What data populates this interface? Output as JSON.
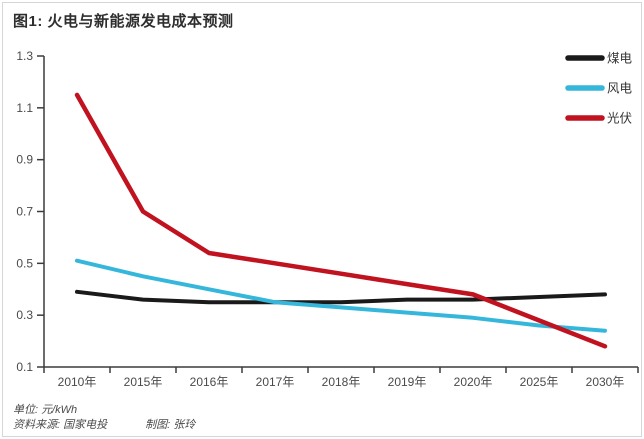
{
  "page": {
    "title": "图1: 火电与新能源发电成本预测",
    "footer": {
      "unit_label": "单位: 元/kWh",
      "source_label": "资料来源: 国家电投",
      "credit_label": "制图: 张玲"
    }
  },
  "chart_data": {
    "type": "line",
    "title": "图1: 火电与新能源发电成本预测",
    "xlabel": "",
    "ylabel": "",
    "unit": "元/kWh",
    "categories": [
      "2010年",
      "2015年",
      "2016年",
      "2017年",
      "2018年",
      "2019年",
      "2020年",
      "2025年",
      "2030年"
    ],
    "series": [
      {
        "key": "coal",
        "name": "煤电",
        "color": "#1a1a1a",
        "values": [
          0.39,
          0.36,
          0.35,
          0.35,
          0.35,
          0.36,
          0.36,
          0.37,
          0.38
        ]
      },
      {
        "key": "wind",
        "name": "风电",
        "color": "#35b7db",
        "values": [
          0.51,
          0.45,
          0.4,
          0.35,
          0.33,
          0.31,
          0.29,
          0.26,
          0.24
        ]
      },
      {
        "key": "solar",
        "name": "光伏",
        "color": "#c0121f",
        "values": [
          1.15,
          0.7,
          0.54,
          0.5,
          0.46,
          0.42,
          0.38,
          0.28,
          0.18
        ]
      }
    ],
    "ylim": [
      0.1,
      1.3
    ],
    "y_ticks": [
      0.1,
      0.3,
      0.5,
      0.7,
      0.9,
      1.1,
      1.3
    ],
    "grid": false,
    "legend_position": "top-right",
    "axis_color": "#3c3c3c",
    "tick_label_color": "#4a4a4a"
  }
}
